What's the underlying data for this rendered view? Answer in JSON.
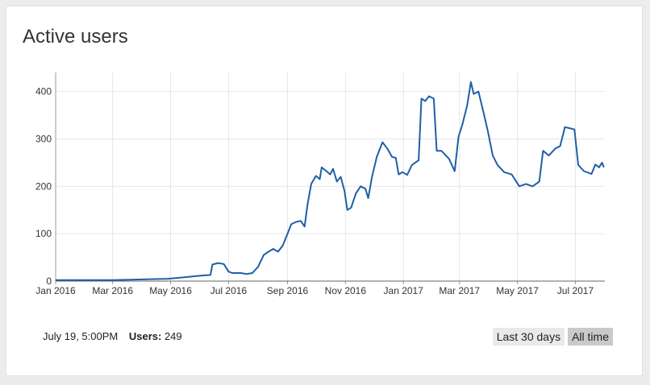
{
  "widget": {
    "title": "Active users"
  },
  "footer": {
    "timestamp": "July 19, 5:00PM",
    "value_label": "Users:",
    "value": "249"
  },
  "range_buttons": [
    {
      "label": "Last 30 days",
      "active": false
    },
    {
      "label": "All time",
      "active": true
    }
  ],
  "colors": {
    "line": "#1f5fa6",
    "grid": "#e6e6e6",
    "active_button": "#c9c9c9",
    "inactive_button": "#e9e9e9"
  },
  "chart_data": {
    "type": "line",
    "title": "",
    "xlabel": "",
    "ylabel": "",
    "ylim": [
      0,
      430
    ],
    "xlim": [
      "2016-01-01",
      "2017-08-01"
    ],
    "grid": true,
    "yticks": [
      0,
      100,
      200,
      300,
      400
    ],
    "xticks": [
      {
        "date": "2016-01-01",
        "label": "Jan 2016"
      },
      {
        "date": "2016-03-01",
        "label": "Mar 2016"
      },
      {
        "date": "2016-05-01",
        "label": "May 2016"
      },
      {
        "date": "2016-07-01",
        "label": "Jul 2016"
      },
      {
        "date": "2016-09-01",
        "label": "Sep 2016"
      },
      {
        "date": "2016-11-01",
        "label": "Nov 2016"
      },
      {
        "date": "2017-01-01",
        "label": "Jan 2017"
      },
      {
        "date": "2017-03-01",
        "label": "Mar 2017"
      },
      {
        "date": "2017-05-01",
        "label": "May 2017"
      },
      {
        "date": "2017-07-01",
        "label": "Jul 2017"
      }
    ],
    "series": [
      {
        "points": [
          [
            "2016-01-01",
            2
          ],
          [
            "2016-02-01",
            2
          ],
          [
            "2016-03-01",
            2
          ],
          [
            "2016-03-20",
            3
          ],
          [
            "2016-04-10",
            4
          ],
          [
            "2016-04-28",
            5
          ],
          [
            "2016-05-10",
            7
          ],
          [
            "2016-05-25",
            10
          ],
          [
            "2016-06-05",
            12
          ],
          [
            "2016-06-12",
            13
          ],
          [
            "2016-06-14",
            35
          ],
          [
            "2016-06-20",
            38
          ],
          [
            "2016-06-26",
            36
          ],
          [
            "2016-07-01",
            20
          ],
          [
            "2016-07-05",
            17
          ],
          [
            "2016-07-14",
            17
          ],
          [
            "2016-07-20",
            15
          ],
          [
            "2016-07-26",
            17
          ],
          [
            "2016-08-01",
            30
          ],
          [
            "2016-08-07",
            55
          ],
          [
            "2016-08-12",
            62
          ],
          [
            "2016-08-17",
            68
          ],
          [
            "2016-08-22",
            62
          ],
          [
            "2016-08-27",
            75
          ],
          [
            "2016-09-01",
            100
          ],
          [
            "2016-09-05",
            120
          ],
          [
            "2016-09-10",
            125
          ],
          [
            "2016-09-15",
            127
          ],
          [
            "2016-09-19",
            115
          ],
          [
            "2016-09-22",
            160
          ],
          [
            "2016-09-26",
            205
          ],
          [
            "2016-10-01",
            222
          ],
          [
            "2016-10-05",
            215
          ],
          [
            "2016-10-07",
            240
          ],
          [
            "2016-10-12",
            232
          ],
          [
            "2016-10-16",
            225
          ],
          [
            "2016-10-19",
            237
          ],
          [
            "2016-10-23",
            210
          ],
          [
            "2016-10-27",
            220
          ],
          [
            "2016-10-31",
            190
          ],
          [
            "2016-11-03",
            150
          ],
          [
            "2016-11-07",
            155
          ],
          [
            "2016-11-12",
            185
          ],
          [
            "2016-11-17",
            200
          ],
          [
            "2016-11-22",
            195
          ],
          [
            "2016-11-25",
            175
          ],
          [
            "2016-11-29",
            220
          ],
          [
            "2016-12-04",
            262
          ],
          [
            "2016-12-10",
            293
          ],
          [
            "2016-12-15",
            280
          ],
          [
            "2016-12-20",
            262
          ],
          [
            "2016-12-24",
            260
          ],
          [
            "2016-12-27",
            225
          ],
          [
            "2016-12-31",
            230
          ],
          [
            "2017-01-05",
            224
          ],
          [
            "2017-01-10",
            245
          ],
          [
            "2017-01-17",
            255
          ],
          [
            "2017-01-20",
            385
          ],
          [
            "2017-01-24",
            380
          ],
          [
            "2017-01-28",
            390
          ],
          [
            "2017-02-02",
            385
          ],
          [
            "2017-02-05",
            275
          ],
          [
            "2017-02-10",
            275
          ],
          [
            "2017-02-18",
            258
          ],
          [
            "2017-02-24",
            232
          ],
          [
            "2017-02-28",
            305
          ],
          [
            "2017-03-04",
            330
          ],
          [
            "2017-03-09",
            370
          ],
          [
            "2017-03-13",
            420
          ],
          [
            "2017-03-16",
            395
          ],
          [
            "2017-03-21",
            400
          ],
          [
            "2017-03-27",
            350
          ],
          [
            "2017-03-31",
            315
          ],
          [
            "2017-04-05",
            265
          ],
          [
            "2017-04-10",
            245
          ],
          [
            "2017-04-17",
            230
          ],
          [
            "2017-04-25",
            225
          ],
          [
            "2017-05-03",
            200
          ],
          [
            "2017-05-10",
            205
          ],
          [
            "2017-05-17",
            200
          ],
          [
            "2017-05-24",
            210
          ],
          [
            "2017-05-28",
            275
          ],
          [
            "2017-06-03",
            265
          ],
          [
            "2017-06-10",
            280
          ],
          [
            "2017-06-15",
            285
          ],
          [
            "2017-06-20",
            325
          ],
          [
            "2017-06-26",
            322
          ],
          [
            "2017-06-30",
            320
          ],
          [
            "2017-07-04",
            245
          ],
          [
            "2017-07-10",
            232
          ],
          [
            "2017-07-18",
            226
          ],
          [
            "2017-07-22",
            246
          ],
          [
            "2017-07-26",
            240
          ],
          [
            "2017-07-29",
            250
          ],
          [
            "2017-07-31",
            240
          ]
        ]
      }
    ]
  }
}
